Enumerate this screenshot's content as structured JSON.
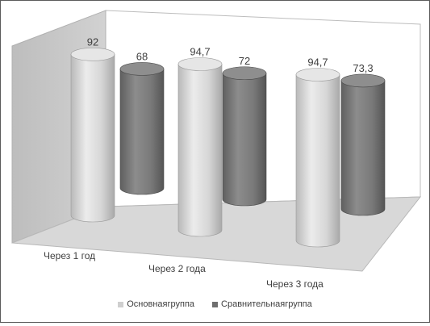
{
  "chart_data": {
    "type": "bar",
    "style": "3d-cylinder",
    "categories": [
      "Через 1 год",
      "Через 2 года",
      "Через 3 года"
    ],
    "series": [
      {
        "name": "Основнаягруппа",
        "values": [
          92,
          94.7,
          94.7
        ],
        "labels": [
          "92",
          "94,7",
          "94,7"
        ],
        "color": "#cfcfcf"
      },
      {
        "name": "Сравнительнаягруппа",
        "values": [
          68,
          72,
          73.3
        ],
        "labels": [
          "68",
          "72",
          "73,3"
        ],
        "color": "#7f7f7f"
      }
    ],
    "ylim": [
      0,
      100
    ],
    "grid": false,
    "legend_position": "bottom"
  }
}
